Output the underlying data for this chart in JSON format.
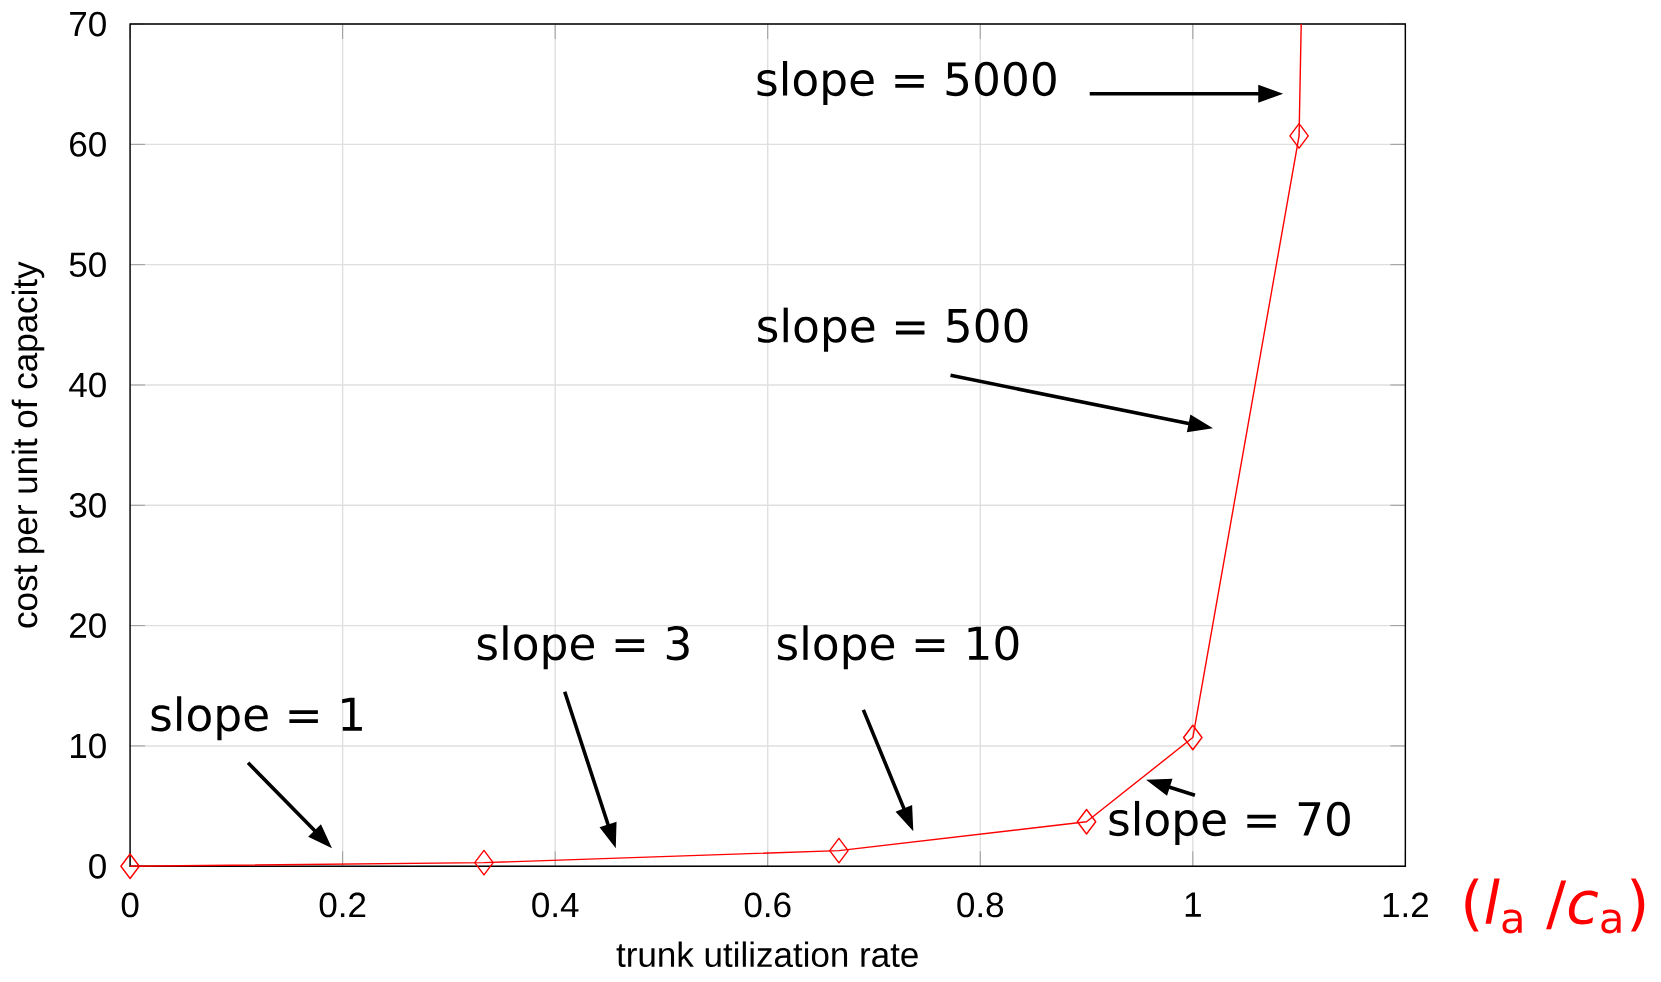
{
  "chart_data": {
    "type": "line",
    "xlabel": "trunk utilization rate",
    "ylabel": "cost per unit of capacity",
    "xlim": [
      0,
      1.2
    ],
    "xticks": [
      0,
      0.2,
      0.4,
      0.6,
      0.8,
      1,
      1.2
    ],
    "ylim": [
      0,
      70
    ],
    "yticks": [
      0,
      10,
      20,
      30,
      40,
      50,
      60,
      70
    ],
    "grid": true,
    "line_style": "solid",
    "series": [
      {
        "color": "#ff0000",
        "marker": "diamond",
        "x": [
          0,
          0.333,
          0.667,
          0.9,
          1,
          1.1
        ],
        "values": [
          0,
          0.3,
          1.3,
          3.7,
          10.7,
          60.7
        ]
      },
      {
        "color": "#ff0000",
        "marker": "none",
        "x": [
          1.1,
          1.102
        ],
        "values": [
          60.7,
          70
        ]
      }
    ],
    "annotations": [
      "slope = 1",
      "slope = 3",
      "slope = 10",
      "slope = 70",
      "slope = 500",
      "slope = 5000",
      "(*l*$_{a}$ /*c*$_{a}$)"
    ]
  }
}
